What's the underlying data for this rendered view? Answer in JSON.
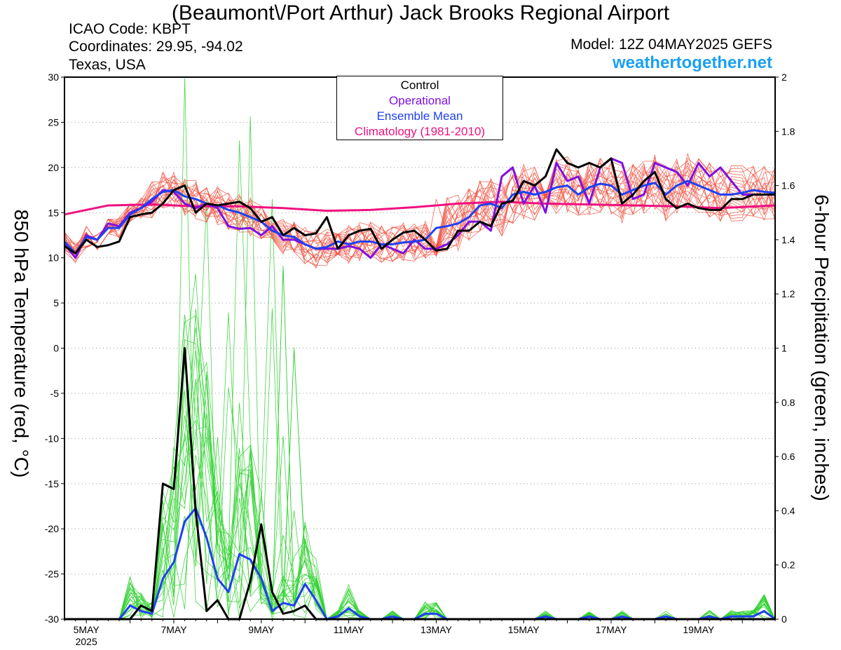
{
  "header": {
    "title": "(Beaumont\\/Port Arthur) Jack Brooks Regional Airport",
    "icao": "ICAO Code: KBPT",
    "coords": "Coordinates: 29.95, -94.02",
    "region": "Texas, USA",
    "model": "Model: 12Z 04MAY2025 GEFS",
    "site": "weathertogether.net"
  },
  "legend": {
    "control": "Control",
    "operational": "Operational",
    "mean": "Ensemble Mean",
    "climo": "Climatology (1981-2010)"
  },
  "colors": {
    "control": "#000000",
    "operational": "#7f10e0",
    "mean": "#2040f0",
    "climo": "#f0107f",
    "members_temp": "#f05040",
    "members_precip": "#30d030",
    "site": "#1aa0f0"
  },
  "chart_data": {
    "type": "line",
    "ylabel_left": "850 hPa Temperature (red, °C)",
    "ylabel_right": "6-hour Precipitation (green, inches)",
    "y_left_range": [
      -30,
      30
    ],
    "y_right_range": [
      0,
      2
    ],
    "y_left_ticks": [
      "30",
      "25",
      "20",
      "15",
      "10",
      "5",
      "0",
      "-5",
      "-10",
      "-15",
      "-20",
      "-25",
      "-30"
    ],
    "y_right_ticks": [
      "2",
      "1.8",
      "1.6",
      "1.4",
      "1.2",
      "1",
      "0.8",
      "0.6",
      "0.4",
      "0.2",
      "0"
    ],
    "x_tick_labels": [
      "5MAY",
      "7MAY",
      "9MAY",
      "11MAY",
      "13MAY",
      "15MAY",
      "17MAY",
      "19MAY"
    ],
    "x_year_label": "2025",
    "x_hours_start": 0,
    "x_hours_end": 390,
    "grid": "horizontal dotted",
    "series": [
      {
        "name": "Control",
        "kind": "temp",
        "x": [
          0,
          6,
          12,
          18,
          24,
          30,
          36,
          42,
          48,
          54,
          60,
          66,
          72,
          78,
          84,
          90,
          96,
          102,
          108,
          114,
          120,
          126,
          132,
          138,
          144,
          150,
          156,
          162,
          168,
          174,
          180,
          186,
          192,
          198,
          204,
          210,
          216,
          222,
          228,
          234,
          240,
          246,
          252,
          258,
          264,
          270,
          276,
          282,
          288,
          294,
          300,
          306,
          312,
          318,
          324,
          330,
          336,
          342,
          348,
          354,
          360,
          366,
          372,
          378,
          384,
          390
        ],
        "y": [
          11.3,
          10.5,
          12.0,
          11.2,
          11.4,
          11.8,
          14.5,
          14.8,
          15.0,
          16.0,
          17.5,
          18.0,
          15.0,
          16.0,
          15.8,
          16.0,
          16.2,
          15.5,
          14.0,
          14.5,
          12.5,
          13.3,
          12.5,
          12.7,
          14.5,
          11.0,
          12.5,
          13.0,
          13.2,
          11.0,
          12.0,
          12.8,
          13.0,
          12.0,
          10.8,
          11.0,
          13.0,
          13.0,
          14.0,
          13.5,
          16.0,
          16.3,
          18.5,
          18.0,
          19.0,
          22.0,
          20.5,
          20.0,
          20.5,
          20.0,
          21.0,
          16.0,
          17.0,
          18.5,
          19.5,
          16.5,
          15.5,
          16.0,
          15.5,
          15.3,
          15.3,
          16.5,
          16.5,
          17.0,
          17.0,
          17.0
        ]
      },
      {
        "name": "Operational",
        "kind": "temp",
        "x": [
          0,
          6,
          12,
          18,
          24,
          30,
          36,
          42,
          48,
          54,
          60,
          66,
          72,
          78,
          84,
          90,
          96,
          102,
          108,
          114,
          120,
          126,
          132,
          138,
          144,
          150,
          156,
          162,
          168,
          174,
          180,
          186,
          192,
          198,
          204,
          210,
          216,
          222,
          228,
          234,
          240,
          246,
          252,
          258,
          264,
          270,
          276,
          282,
          288,
          294,
          300,
          306,
          312,
          318,
          324,
          330,
          336,
          342,
          348,
          354,
          360,
          366,
          372,
          378,
          384,
          390
        ],
        "y": [
          11.5,
          10.0,
          12.5,
          12.0,
          13.8,
          13.5,
          15.0,
          15.5,
          16.2,
          17.5,
          17.3,
          16.0,
          15.5,
          16.0,
          15.5,
          13.5,
          13.2,
          13.3,
          12.5,
          13.5,
          12.0,
          12.0,
          11.5,
          11.0,
          11.0,
          11.0,
          11.3,
          11.0,
          10.0,
          11.5,
          11.0,
          10.5,
          12.0,
          11.0,
          11.0,
          11.5,
          12.5,
          14.0,
          14.0,
          13.0,
          19.0,
          20.0,
          16.0,
          18.0,
          15.0,
          20.5,
          18.5,
          19.0,
          16.0,
          20.0,
          21.0,
          20.5,
          16.5,
          17.0,
          20.5,
          20.0,
          19.5,
          18.0,
          20.5,
          19.0,
          20.0,
          18.5,
          17.0,
          17.0,
          17.0,
          17.0
        ]
      },
      {
        "name": "Ensemble Mean",
        "kind": "temp",
        "x": [
          0,
          6,
          12,
          18,
          24,
          30,
          36,
          42,
          48,
          54,
          60,
          66,
          72,
          78,
          84,
          90,
          96,
          102,
          108,
          114,
          120,
          126,
          132,
          138,
          144,
          150,
          156,
          162,
          168,
          174,
          180,
          186,
          192,
          198,
          204,
          210,
          216,
          222,
          228,
          234,
          240,
          246,
          252,
          258,
          264,
          270,
          276,
          282,
          288,
          294,
          300,
          306,
          312,
          318,
          324,
          330,
          336,
          342,
          348,
          354,
          360,
          366,
          372,
          378,
          384,
          390
        ],
        "y": [
          11.8,
          10.5,
          12.3,
          12.0,
          13.3,
          13.3,
          14.8,
          15.5,
          16.5,
          17.3,
          17.5,
          16.8,
          16.5,
          16.0,
          15.8,
          15.3,
          15.0,
          14.5,
          14.0,
          13.0,
          12.5,
          12.3,
          11.5,
          11.0,
          11.2,
          11.8,
          11.5,
          11.8,
          11.8,
          11.5,
          11.5,
          11.7,
          11.8,
          12.0,
          13.3,
          13.5,
          13.8,
          14.5,
          15.8,
          16.0,
          15.5,
          17.0,
          17.3,
          17.0,
          17.3,
          17.8,
          18.0,
          17.0,
          17.8,
          18.2,
          18.0,
          17.0,
          17.5,
          18.0,
          18.3,
          17.0,
          18.0,
          18.5,
          18.0,
          17.5,
          17.0,
          17.0,
          17.2,
          17.5,
          17.3,
          17.2
        ]
      },
      {
        "name": "Climatology (1981-2010)",
        "kind": "temp",
        "x": [
          0,
          24,
          48,
          72,
          96,
          120,
          144,
          168,
          192,
          216,
          240,
          264,
          288,
          312,
          336,
          360,
          390
        ],
        "y": [
          14.8,
          15.8,
          15.9,
          15.7,
          15.7,
          15.5,
          15.2,
          15.3,
          15.6,
          16.0,
          16.2,
          16.0,
          15.9,
          15.8,
          15.7,
          15.5,
          15.8
        ]
      },
      {
        "name": "Control",
        "kind": "precip",
        "x": [
          0,
          6,
          12,
          18,
          24,
          30,
          36,
          42,
          48,
          54,
          60,
          66,
          72,
          78,
          84,
          90,
          96,
          102,
          108,
          114,
          120,
          126,
          132,
          138,
          144,
          150,
          156,
          162,
          168,
          174,
          180,
          186,
          192,
          198,
          204,
          210,
          216,
          222,
          228,
          234,
          240,
          246,
          252,
          258,
          264,
          270,
          276,
          282,
          288,
          294,
          300,
          306,
          312,
          318,
          324,
          330,
          336,
          342,
          348,
          354,
          360,
          366,
          372,
          378,
          384,
          390
        ],
        "y": [
          0,
          0,
          0,
          0,
          0,
          0,
          0,
          0.05,
          0.03,
          0.5,
          0.48,
          1.0,
          0.4,
          0.03,
          0.07,
          0,
          0,
          0.14,
          0.35,
          0.1,
          0.02,
          0.03,
          0.05,
          0,
          0,
          0,
          0,
          0,
          0,
          0,
          0,
          0,
          0,
          0,
          0,
          0,
          0,
          0,
          0,
          0,
          0,
          0,
          0,
          0,
          0,
          0,
          0,
          0,
          0,
          0,
          0,
          0,
          0,
          0,
          0,
          0,
          0,
          0,
          0,
          0,
          0,
          0,
          0,
          0,
          0,
          0
        ]
      },
      {
        "name": "Ensemble Mean",
        "kind": "precip",
        "x": [
          0,
          6,
          12,
          18,
          24,
          30,
          36,
          42,
          48,
          54,
          60,
          66,
          72,
          78,
          84,
          90,
          96,
          102,
          108,
          114,
          120,
          126,
          132,
          138,
          144,
          150,
          156,
          162,
          168,
          174,
          180,
          186,
          192,
          198,
          204,
          210,
          216,
          222,
          228,
          234,
          240,
          246,
          252,
          258,
          264,
          270,
          276,
          282,
          288,
          294,
          300,
          306,
          312,
          318,
          324,
          330,
          336,
          342,
          348,
          354,
          360,
          366,
          372,
          378,
          384,
          390
        ],
        "y": [
          0,
          0,
          0,
          0,
          0,
          0,
          0.05,
          0.03,
          0.02,
          0.15,
          0.21,
          0.36,
          0.41,
          0.3,
          0.15,
          0.1,
          0.24,
          0.22,
          0.15,
          0.03,
          0.06,
          0.05,
          0.13,
          0.07,
          0,
          0.01,
          0.04,
          0.01,
          0,
          0,
          0.01,
          0,
          0,
          0.02,
          0.02,
          0,
          0,
          0,
          0,
          0,
          0,
          0,
          0,
          0,
          0.01,
          0,
          0,
          0,
          0.01,
          0,
          0,
          0.01,
          0,
          0,
          0,
          0.01,
          0,
          0,
          0,
          0.01,
          0,
          0.01,
          0.01,
          0.01,
          0.03,
          0
        ]
      }
    ]
  }
}
